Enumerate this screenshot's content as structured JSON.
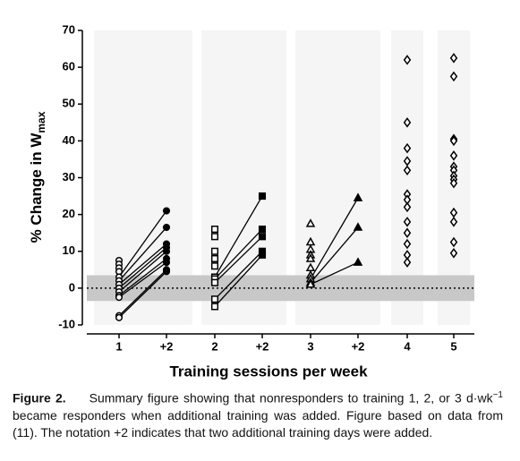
{
  "chart_data": {
    "type": "paired-dot",
    "ylabel": "% Change in W",
    "ylabel_sub": "max",
    "xlabel": "Training sessions per week",
    "categories": [
      "1",
      "+2",
      "2",
      "+2",
      "3",
      "+2",
      "4",
      "5"
    ],
    "ylim": [
      -10,
      70
    ],
    "yticks": [
      -10,
      0,
      10,
      20,
      30,
      40,
      50,
      60,
      70
    ],
    "reference_band": [
      -3.5,
      3.5
    ],
    "reference_line": 0,
    "groups": [
      {
        "responders": [
          7.5,
          6.5,
          5.5,
          4.5
        ],
        "nonresponders": [
          3,
          2,
          1,
          0,
          -1,
          -2,
          -2.5,
          -7.5,
          -8
        ],
        "added": [
          21,
          16.5,
          12,
          11,
          10,
          8,
          7,
          5,
          4.5
        ]
      },
      {
        "responders": [
          16,
          14,
          10,
          8,
          6
        ],
        "nonresponders": [
          3,
          2.5,
          1.5,
          -3,
          -5
        ],
        "added": [
          25,
          16,
          14,
          10,
          9
        ]
      },
      {
        "responders": [
          17.5,
          12.5,
          10.5,
          9,
          8,
          5.5,
          3.5
        ],
        "nonresponders": [
          2.5,
          1.5,
          1
        ],
        "added": [
          24.5,
          16.5,
          7
        ]
      },
      {
        "responders": [
          62,
          45,
          38,
          34.5,
          32,
          25.5,
          24,
          22,
          18,
          15,
          12,
          9,
          7
        ]
      },
      {
        "responders": [
          62.5,
          57.5,
          40.5,
          40,
          36,
          33,
          32,
          30.5,
          29.5,
          28.5,
          20.5,
          18,
          12.5,
          9.5
        ]
      }
    ]
  },
  "caption": {
    "label": "Figure 2.",
    "text_1": "Summary figure showing that nonresponders to training 1, 2, or 3 d·wk",
    "sup": "−1",
    "text_2": " became responders when additional training was added. Figure based on data from (11). The notation +2 indicates that two additional training days were added."
  }
}
